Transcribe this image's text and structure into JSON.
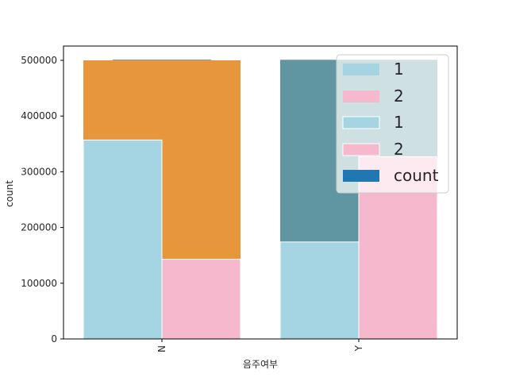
{
  "chart_data": {
    "type": "bar",
    "xlabel": "음주여부",
    "ylabel": "count",
    "categories": [
      "N",
      "Y"
    ],
    "ylim": [
      0,
      500000
    ],
    "yticks": [
      0,
      100000,
      200000,
      300000,
      400000,
      500000
    ],
    "ytick_labels": [
      "0",
      "100000",
      "200000",
      "300000",
      "400000",
      "500000"
    ],
    "bars": [
      {
        "category": "N",
        "series": "count",
        "value": 501000,
        "color": "#3d7f86",
        "slot": "center"
      },
      {
        "category": "N",
        "series": "overlay",
        "value": 500000,
        "color": "#e8963c",
        "slot": "full"
      },
      {
        "category": "N",
        "series": "1",
        "value": 357000,
        "color": "#a5d4e3",
        "slot": "left"
      },
      {
        "category": "N",
        "series": "2",
        "value": 143000,
        "color": "#f5b8cc",
        "slot": "right"
      },
      {
        "category": "Y",
        "series": "count",
        "value": 501000,
        "color": "#6096a1",
        "slot": "full"
      },
      {
        "category": "Y",
        "series": "1",
        "value": 174000,
        "color": "#a5d4e3",
        "slot": "left"
      },
      {
        "category": "Y",
        "series": "2",
        "value": 327000,
        "color": "#f5b8cc",
        "slot": "right"
      }
    ],
    "legend": {
      "placement": "top-right",
      "entries": [
        {
          "label": "1",
          "color": "#a5d4e3"
        },
        {
          "label": "2",
          "color": "#f5b8cc"
        },
        {
          "label": "1",
          "color": "#a5d4e3"
        },
        {
          "label": "2",
          "color": "#f5b8cc"
        },
        {
          "label": "count",
          "color": "#1f77b4"
        }
      ]
    }
  }
}
